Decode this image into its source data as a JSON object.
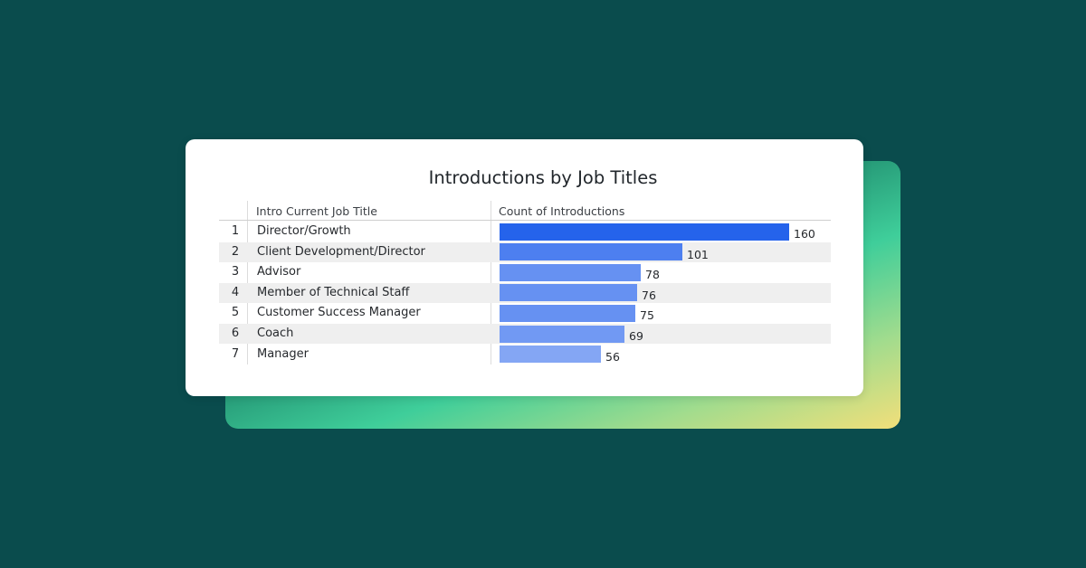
{
  "chart_data": {
    "type": "table",
    "title": "Introductions by Job Titles",
    "columns": [
      "Intro Current Job Title",
      "Count of Introductions"
    ],
    "rows": [
      {
        "rank": "1",
        "title": "Director/Growth",
        "count": 160
      },
      {
        "rank": "2",
        "title": "Client Development/Director",
        "count": 101
      },
      {
        "rank": "3",
        "title": "Advisor",
        "count": 78
      },
      {
        "rank": "4",
        "title": "Member of Technical Staff",
        "count": 76
      },
      {
        "rank": "5",
        "title": "Customer Success Manager",
        "count": 75
      },
      {
        "rank": "6",
        "title": "Coach",
        "count": 69
      },
      {
        "rank": "7",
        "title": "Manager",
        "count": 56
      }
    ],
    "bar_max": 160,
    "bar_colors": [
      "#2563eb",
      "#4d7ff0",
      "#6691f2",
      "#6691f2",
      "#6691f2",
      "#7199f3",
      "#84a6f4"
    ]
  }
}
